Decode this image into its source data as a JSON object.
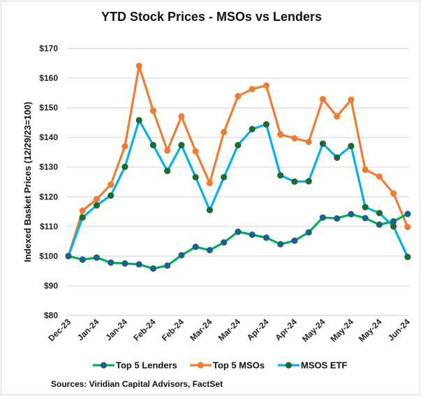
{
  "chart_data": {
    "type": "line",
    "title": "YTD Stock Prices - MSOs vs Lenders",
    "xlabel": "",
    "ylabel": "Indexed Basket Prices (12/29/23=100)",
    "ylim": [
      80,
      170
    ],
    "y_ticks": [
      80,
      90,
      100,
      110,
      120,
      130,
      140,
      150,
      160,
      170
    ],
    "y_tick_labels": [
      "$80",
      "$90",
      "$100",
      "$110",
      "$120",
      "$130",
      "$140",
      "$150",
      "$160",
      "$170"
    ],
    "grid": true,
    "x_tick_labels": [
      "Dec-23",
      "Jan-24",
      "Jan-24",
      "Feb-24",
      "Feb-24",
      "Mar-24",
      "Mar-24",
      "Apr-24",
      "Apr-24",
      "May-24",
      "May-24",
      "May-24",
      "Jun-24"
    ],
    "x_label_every": 2,
    "point_count": 25,
    "legend_position": "bottom",
    "series": [
      {
        "name": "Top 5 Lenders",
        "line_color": "#00B050",
        "marker_color": "#1F5F8B",
        "values": [
          100,
          98.8,
          99.5,
          97.8,
          97.5,
          97.2,
          95.8,
          96.8,
          100.3,
          103.1,
          102,
          104.6,
          108.2,
          107.2,
          106.2,
          104,
          105.2,
          108,
          113,
          112.7,
          114.1,
          112.8,
          110.6,
          111.7,
          114.2
        ]
      },
      {
        "name": "Top 5 MSOs",
        "line_color": "#ED7D31",
        "marker_color": "#ED7D31",
        "values": [
          100,
          115.3,
          119.2,
          124.1,
          137,
          164.1,
          149,
          135.6,
          147.1,
          135.3,
          124.6,
          141.8,
          153.9,
          156.3,
          157.5,
          141,
          139.7,
          138.5,
          152.9,
          147.1,
          152.7,
          129.1,
          126.8,
          121.1,
          109.8
        ]
      },
      {
        "name": "MSOS ETF",
        "line_color": "#00B0F0",
        "marker_color": "#1E6B2E",
        "values": [
          100,
          113,
          117.1,
          120.4,
          130.1,
          145.8,
          137.4,
          128.7,
          137.4,
          126.6,
          115.5,
          126.6,
          137.4,
          142.8,
          144.4,
          127.2,
          125.1,
          125.2,
          137.9,
          133.2,
          137.1,
          116.5,
          114.5,
          110,
          99.7
        ]
      }
    ],
    "source": "Sources: Viridian Capital Advisors, FactSet"
  }
}
